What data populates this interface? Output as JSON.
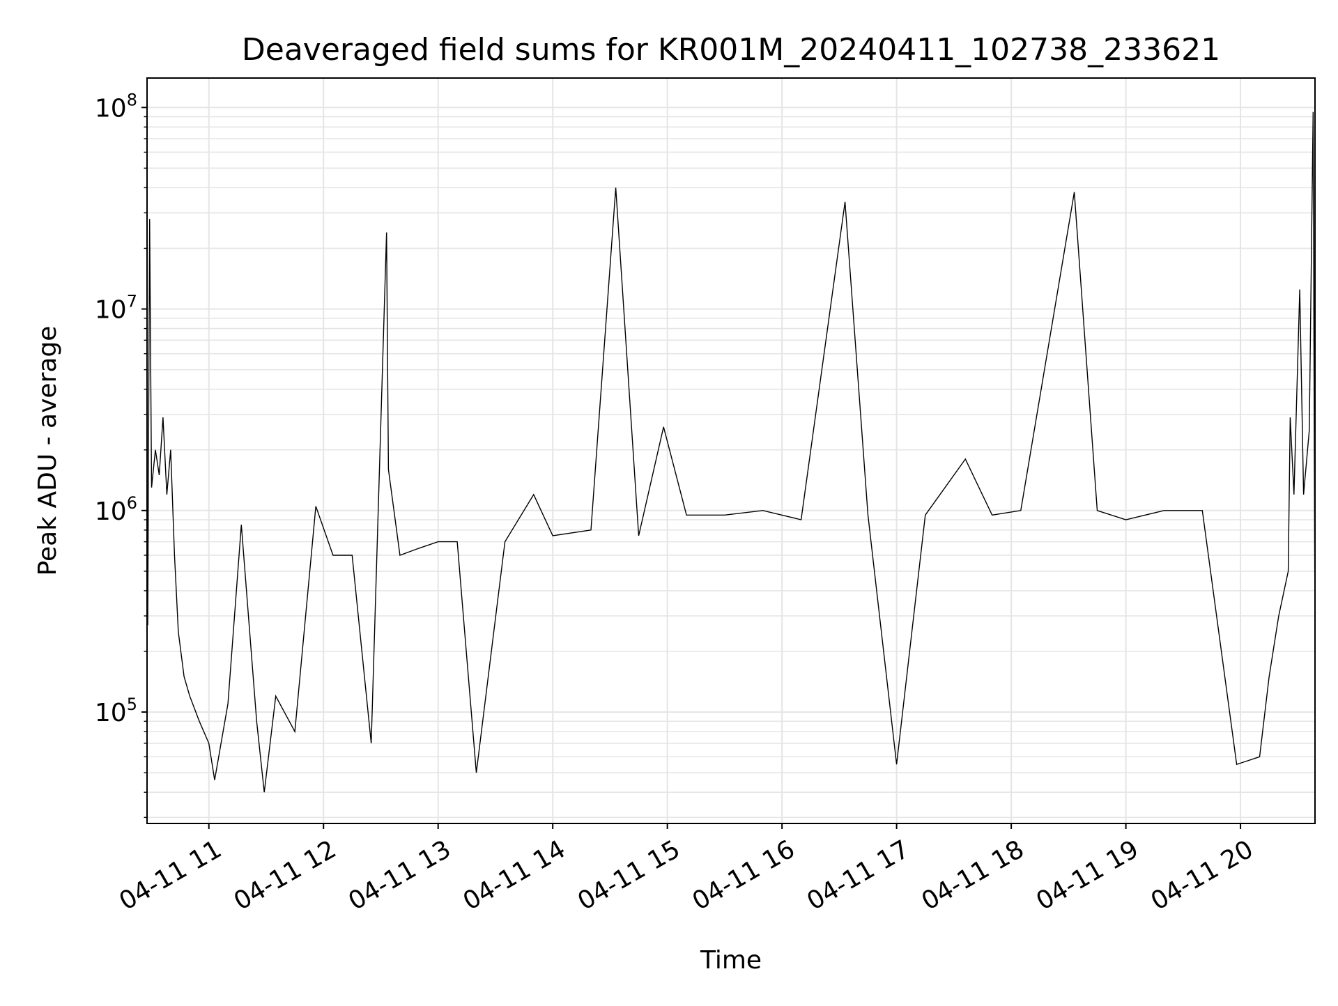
{
  "chart_data": {
    "type": "line",
    "title": "Deaveraged field sums for KR001M_20240411_102738_233621",
    "xlabel": "Time",
    "ylabel": "Peak ADU - average",
    "yscale": "log",
    "ylim": [
      28000,
      140000000
    ],
    "xlim": [
      "2024-04-11 10:27:38",
      "2024-04-11 20:39:00"
    ],
    "grid": true,
    "line_color": "#000000",
    "grid_color": "#e5e5e5",
    "x_ticks": [
      {
        "t": "2024-04-11 11:00",
        "label": "04-11 11"
      },
      {
        "t": "2024-04-11 12:00",
        "label": "04-11 12"
      },
      {
        "t": "2024-04-11 13:00",
        "label": "04-11 13"
      },
      {
        "t": "2024-04-11 14:00",
        "label": "04-11 14"
      },
      {
        "t": "2024-04-11 15:00",
        "label": "04-11 15"
      },
      {
        "t": "2024-04-11 16:00",
        "label": "04-11 16"
      },
      {
        "t": "2024-04-11 17:00",
        "label": "04-11 17"
      },
      {
        "t": "2024-04-11 18:00",
        "label": "04-11 18"
      },
      {
        "t": "2024-04-11 19:00",
        "label": "04-11 19"
      },
      {
        "t": "2024-04-11 20:00",
        "label": "04-11 20"
      }
    ],
    "y_ticks": [
      {
        "value": 100000,
        "base": "10",
        "exp": "5"
      },
      {
        "value": 1000000,
        "base": "10",
        "exp": "6"
      },
      {
        "value": 10000000,
        "base": "10",
        "exp": "7"
      },
      {
        "value": 100000000,
        "base": "10",
        "exp": "8"
      }
    ],
    "series": [
      {
        "points": [
          [
            "2024-04-11 10:28",
            270000.0
          ],
          [
            "2024-04-11 10:29",
            28000000.0
          ],
          [
            "2024-04-11 10:30",
            1300000.0
          ],
          [
            "2024-04-11 10:32",
            2000000.0
          ],
          [
            "2024-04-11 10:34",
            1500000.0
          ],
          [
            "2024-04-11 10:36",
            2900000.0
          ],
          [
            "2024-04-11 10:38",
            1200000.0
          ],
          [
            "2024-04-11 10:40",
            2000000.0
          ],
          [
            "2024-04-11 10:42",
            600000.0
          ],
          [
            "2024-04-11 10:44",
            250000.0
          ],
          [
            "2024-04-11 10:47",
            150000.0
          ],
          [
            "2024-04-11 10:50",
            120000.0
          ],
          [
            "2024-04-11 10:55",
            90000.0
          ],
          [
            "2024-04-11 11:00",
            70000.0
          ],
          [
            "2024-04-11 11:03",
            46000.0
          ],
          [
            "2024-04-11 11:10",
            110000.0
          ],
          [
            "2024-04-11 11:17",
            850000.0
          ],
          [
            "2024-04-11 11:25",
            90000.0
          ],
          [
            "2024-04-11 11:29",
            40000.0
          ],
          [
            "2024-04-11 11:35",
            120000.0
          ],
          [
            "2024-04-11 11:45",
            80000.0
          ],
          [
            "2024-04-11 11:56",
            1050000.0
          ],
          [
            "2024-04-11 12:05",
            600000.0
          ],
          [
            "2024-04-11 12:15",
            600000.0
          ],
          [
            "2024-04-11 12:25",
            70000.0
          ],
          [
            "2024-04-11 12:33",
            24000000.0
          ],
          [
            "2024-04-11 12:34",
            1600000.0
          ],
          [
            "2024-04-11 12:40",
            600000.0
          ],
          [
            "2024-04-11 12:50",
            650000.0
          ],
          [
            "2024-04-11 13:00",
            700000.0
          ],
          [
            "2024-04-11 13:10",
            700000.0
          ],
          [
            "2024-04-11 13:20",
            50000.0
          ],
          [
            "2024-04-11 13:35",
            700000.0
          ],
          [
            "2024-04-11 13:50",
            1200000.0
          ],
          [
            "2024-04-11 14:00",
            750000.0
          ],
          [
            "2024-04-11 14:20",
            800000.0
          ],
          [
            "2024-04-11 14:33",
            40000000.0
          ],
          [
            "2024-04-11 14:45",
            750000.0
          ],
          [
            "2024-04-11 14:58",
            2600000.0
          ],
          [
            "2024-04-11 15:10",
            950000.0
          ],
          [
            "2024-04-11 15:30",
            950000.0
          ],
          [
            "2024-04-11 15:50",
            1000000.0
          ],
          [
            "2024-04-11 16:10",
            900000.0
          ],
          [
            "2024-04-11 16:33",
            34000000.0
          ],
          [
            "2024-04-11 16:45",
            950000.0
          ],
          [
            "2024-04-11 17:00",
            55000.0
          ],
          [
            "2024-04-11 17:15",
            950000.0
          ],
          [
            "2024-04-11 17:36",
            1800000.0
          ],
          [
            "2024-04-11 17:50",
            950000.0
          ],
          [
            "2024-04-11 18:05",
            1000000.0
          ],
          [
            "2024-04-11 18:33",
            38000000.0
          ],
          [
            "2024-04-11 18:45",
            1000000.0
          ],
          [
            "2024-04-11 19:00",
            900000.0
          ],
          [
            "2024-04-11 19:20",
            1000000.0
          ],
          [
            "2024-04-11 19:40",
            1000000.0
          ],
          [
            "2024-04-11 19:58",
            55000.0
          ],
          [
            "2024-04-11 20:10",
            60000.0
          ],
          [
            "2024-04-11 20:15",
            150000.0
          ],
          [
            "2024-04-11 20:20",
            300000.0
          ],
          [
            "2024-04-11 20:25",
            500000.0
          ],
          [
            "2024-04-11 20:26",
            2900000.0
          ],
          [
            "2024-04-11 20:28",
            1200000.0
          ],
          [
            "2024-04-11 20:31",
            12500000.0
          ],
          [
            "2024-04-11 20:33",
            1200000.0
          ],
          [
            "2024-04-11 20:36",
            2500000.0
          ],
          [
            "2024-04-11 20:38",
            95000000.0
          ],
          [
            "2024-04-11 20:39",
            220000.0
          ]
        ]
      }
    ]
  }
}
